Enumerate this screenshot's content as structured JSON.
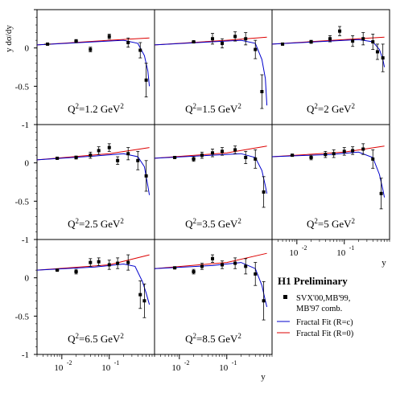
{
  "chart_data": {
    "type": "scatter",
    "ylabel": "y dσ/dy",
    "xlabel": "y",
    "xscale": "log",
    "xlim": [
      0.003,
      0.9
    ],
    "ylim": [
      -1,
      0.5
    ],
    "yticks": [
      "0",
      "-0.5",
      "-1"
    ],
    "xticks": [
      "10",
      "10",
      "1"
    ],
    "xtick_exp": [
      "-2",
      "-1",
      ""
    ],
    "legend": {
      "title": "H1 Preliminary",
      "entries": [
        {
          "label": "SVX'00,MB'99,",
          "label2": "MB'97 comb.",
          "color": "#000000",
          "kind": "marker"
        },
        {
          "label": "Fractal Fit (R=c)",
          "color": "#0000cc",
          "kind": "line"
        },
        {
          "label": "Fractal Fit (R=0)",
          "color": "#dd0000",
          "kind": "line"
        }
      ]
    },
    "panels": [
      {
        "q2": "Q",
        "q2_sup": "2",
        "q2_rest": "=1.2 GeV",
        "q2_unit_sup": "2",
        "points": [
          [
            0.005,
            0.05,
            0.01,
            0.5
          ],
          [
            0.02,
            0.09,
            0.02,
            0.3
          ],
          [
            0.04,
            -0.02,
            0.03,
            0.2
          ],
          [
            0.1,
            0.15,
            0.03,
            0.1
          ],
          [
            0.25,
            0.07,
            0.06,
            0.2
          ],
          [
            0.45,
            -0.03,
            0.1,
            0.15
          ],
          [
            0.6,
            -0.42,
            0.22,
            0.05
          ]
        ],
        "fit_c": [
          [
            0.003,
            0.04
          ],
          [
            0.05,
            0.08
          ],
          [
            0.2,
            0.1
          ],
          [
            0.4,
            0.06
          ],
          [
            0.55,
            -0.1
          ],
          [
            0.65,
            -0.3
          ],
          [
            0.7,
            -0.5
          ]
        ],
        "fit_0": [
          [
            0.003,
            0.04
          ],
          [
            0.1,
            0.1
          ],
          [
            0.7,
            0.13
          ]
        ]
      },
      {
        "q2": "Q",
        "q2_sup": "2",
        "q2_rest": "=1.5 GeV",
        "q2_unit_sup": "2",
        "points": [
          [
            0.02,
            0.08,
            0.01,
            0.3
          ],
          [
            0.05,
            0.12,
            0.07,
            0.2
          ],
          [
            0.08,
            0.06,
            0.06,
            0.2
          ],
          [
            0.15,
            0.15,
            0.06,
            0.1
          ],
          [
            0.25,
            0.12,
            0.08,
            0.2
          ],
          [
            0.4,
            -0.02,
            0.12,
            0.15
          ],
          [
            0.55,
            -0.57,
            0.22,
            0.05
          ]
        ],
        "fit_c": [
          [
            0.003,
            0.04
          ],
          [
            0.05,
            0.08
          ],
          [
            0.2,
            0.1
          ],
          [
            0.4,
            0.06
          ],
          [
            0.55,
            -0.15
          ],
          [
            0.65,
            -0.4
          ],
          [
            0.7,
            -0.75
          ]
        ],
        "fit_0": [
          [
            0.003,
            0.04
          ],
          [
            0.1,
            0.1
          ],
          [
            0.7,
            0.14
          ]
        ]
      },
      {
        "q2": "Q",
        "q2_sup": "2",
        "q2_rest": "=2 GeV",
        "q2_unit_sup": "2",
        "points": [
          [
            0.005,
            0.05,
            0.01,
            0.2
          ],
          [
            0.02,
            0.08,
            0.02,
            0.3
          ],
          [
            0.05,
            0.12,
            0.04,
            0.2
          ],
          [
            0.08,
            0.22,
            0.06,
            0.2
          ],
          [
            0.15,
            0.09,
            0.07,
            0.1
          ],
          [
            0.25,
            0.12,
            0.08,
            0.2
          ],
          [
            0.4,
            0.08,
            0.1,
            0.15
          ],
          [
            0.5,
            -0.05,
            0.1,
            0.1
          ],
          [
            0.65,
            -0.13,
            0.18,
            0.05
          ]
        ],
        "fit_c": [
          [
            0.003,
            0.05
          ],
          [
            0.05,
            0.09
          ],
          [
            0.2,
            0.11
          ],
          [
            0.4,
            0.08
          ],
          [
            0.55,
            -0.02
          ],
          [
            0.65,
            -0.15
          ],
          [
            0.7,
            -0.25
          ]
        ],
        "fit_0": [
          [
            0.003,
            0.05
          ],
          [
            0.1,
            0.11
          ],
          [
            0.7,
            0.14
          ]
        ]
      },
      {
        "q2": "Q",
        "q2_sup": "2",
        "q2_rest": "=2.5 GeV",
        "q2_unit_sup": "2",
        "points": [
          [
            0.008,
            0.06,
            0.01,
            0.3
          ],
          [
            0.02,
            0.07,
            0.02,
            0.3
          ],
          [
            0.04,
            0.1,
            0.04,
            0.2
          ],
          [
            0.06,
            0.16,
            0.05,
            0.2
          ],
          [
            0.1,
            0.2,
            0.05,
            0.15
          ],
          [
            0.15,
            0.03,
            0.05,
            0.1
          ],
          [
            0.25,
            0.12,
            0.08,
            0.15
          ],
          [
            0.4,
            0.03,
            0.12,
            0.12
          ],
          [
            0.6,
            -0.17,
            0.2,
            0.05
          ]
        ],
        "fit_c": [
          [
            0.003,
            0.04
          ],
          [
            0.05,
            0.09
          ],
          [
            0.2,
            0.12
          ],
          [
            0.4,
            0.08
          ],
          [
            0.55,
            -0.05
          ],
          [
            0.65,
            -0.3
          ],
          [
            0.7,
            -0.42
          ]
        ],
        "fit_0": [
          [
            0.003,
            0.04
          ],
          [
            0.1,
            0.12
          ],
          [
            0.7,
            0.2
          ]
        ]
      },
      {
        "q2": "Q",
        "q2_sup": "2",
        "q2_rest": "=3.5 GeV",
        "q2_unit_sup": "2",
        "points": [
          [
            0.008,
            0.07,
            0.01,
            0.3
          ],
          [
            0.02,
            0.05,
            0.03,
            0.3
          ],
          [
            0.03,
            0.1,
            0.04,
            0.2
          ],
          [
            0.05,
            0.13,
            0.05,
            0.2
          ],
          [
            0.08,
            0.15,
            0.05,
            0.15
          ],
          [
            0.15,
            0.17,
            0.05,
            0.1
          ],
          [
            0.25,
            0.07,
            0.08,
            0.15
          ],
          [
            0.4,
            0.05,
            0.12,
            0.12
          ],
          [
            0.6,
            -0.38,
            0.2,
            0.05
          ]
        ],
        "fit_c": [
          [
            0.003,
            0.06
          ],
          [
            0.05,
            0.1
          ],
          [
            0.2,
            0.12
          ],
          [
            0.4,
            0.07
          ],
          [
            0.55,
            -0.1
          ],
          [
            0.65,
            -0.3
          ],
          [
            0.7,
            -0.4
          ]
        ],
        "fit_0": [
          [
            0.003,
            0.06
          ],
          [
            0.1,
            0.13
          ],
          [
            0.7,
            0.22
          ]
        ]
      },
      {
        "q2": "Q",
        "q2_sup": "2",
        "q2_rest": "=5 GeV",
        "q2_unit_sup": "2",
        "points": [
          [
            0.008,
            0.1,
            0.01,
            0.3
          ],
          [
            0.02,
            0.07,
            0.03,
            0.3
          ],
          [
            0.04,
            0.11,
            0.04,
            0.2
          ],
          [
            0.06,
            0.12,
            0.05,
            0.2
          ],
          [
            0.1,
            0.15,
            0.05,
            0.15
          ],
          [
            0.15,
            0.16,
            0.05,
            0.1
          ],
          [
            0.25,
            0.18,
            0.07,
            0.15
          ],
          [
            0.4,
            0.05,
            0.12,
            0.12
          ],
          [
            0.6,
            -0.4,
            0.2,
            0.05
          ]
        ],
        "fit_c": [
          [
            0.003,
            0.08
          ],
          [
            0.05,
            0.11
          ],
          [
            0.2,
            0.14
          ],
          [
            0.4,
            0.07
          ],
          [
            0.55,
            -0.15
          ],
          [
            0.65,
            -0.35
          ],
          [
            0.7,
            -0.45
          ]
        ],
        "fit_0": [
          [
            0.003,
            0.08
          ],
          [
            0.1,
            0.14
          ],
          [
            0.7,
            0.22
          ]
        ]
      },
      {
        "q2": "Q",
        "q2_sup": "2",
        "q2_rest": "=6.5 GeV",
        "q2_unit_sup": "2",
        "points": [
          [
            0.008,
            0.1,
            0.01,
            0.3
          ],
          [
            0.02,
            0.08,
            0.03,
            0.3
          ],
          [
            0.04,
            0.2,
            0.05,
            0.2
          ],
          [
            0.06,
            0.21,
            0.05,
            0.2
          ],
          [
            0.1,
            0.17,
            0.06,
            0.15
          ],
          [
            0.15,
            0.19,
            0.07,
            0.1
          ],
          [
            0.25,
            0.2,
            0.1,
            0.15
          ],
          [
            0.45,
            -0.22,
            0.18,
            0.1
          ],
          [
            0.55,
            -0.3,
            0.22,
            0.05
          ]
        ],
        "fit_c": [
          [
            0.003,
            0.1
          ],
          [
            0.05,
            0.14
          ],
          [
            0.2,
            0.18
          ],
          [
            0.35,
            0.15
          ],
          [
            0.5,
            -0.05
          ],
          [
            0.6,
            -0.2
          ],
          [
            0.7,
            -0.35
          ]
        ],
        "fit_0": [
          [
            0.003,
            0.1
          ],
          [
            0.1,
            0.17
          ],
          [
            0.7,
            0.3
          ]
        ]
      },
      {
        "q2": "Q",
        "q2_sup": "2",
        "q2_rest": "=8.5 GeV",
        "q2_unit_sup": "2",
        "points": [
          [
            0.008,
            0.13,
            0.01,
            0.3
          ],
          [
            0.02,
            0.08,
            0.03,
            0.3
          ],
          [
            0.03,
            0.15,
            0.04,
            0.2
          ],
          [
            0.05,
            0.25,
            0.05,
            0.2
          ],
          [
            0.08,
            0.17,
            0.05,
            0.15
          ],
          [
            0.15,
            0.19,
            0.07,
            0.1
          ],
          [
            0.25,
            0.15,
            0.1,
            0.15
          ],
          [
            0.4,
            0.05,
            0.15,
            0.12
          ],
          [
            0.6,
            -0.3,
            0.25,
            0.05
          ]
        ],
        "fit_c": [
          [
            0.003,
            0.12
          ],
          [
            0.05,
            0.16
          ],
          [
            0.2,
            0.2
          ],
          [
            0.4,
            0.12
          ],
          [
            0.55,
            -0.1
          ],
          [
            0.65,
            -0.3
          ],
          [
            0.7,
            -0.38
          ]
        ],
        "fit_0": [
          [
            0.003,
            0.12
          ],
          [
            0.1,
            0.2
          ],
          [
            0.7,
            0.32
          ]
        ]
      }
    ]
  }
}
